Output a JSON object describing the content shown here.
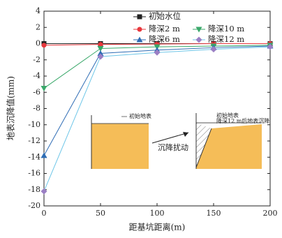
{
  "chart_data": {
    "type": "line",
    "xlabel": "距基坑距离(m)",
    "ylabel": "地表沉降值(mm)",
    "x": [
      0,
      50,
      100,
      150,
      200
    ],
    "xlim": [
      0,
      200
    ],
    "xticks": [
      0,
      50,
      100,
      150,
      200
    ],
    "ylim": [
      -20,
      4
    ],
    "yticks": [
      -20,
      -18,
      -16,
      -14,
      -12,
      -10,
      -8,
      -6,
      -4,
      -2,
      0,
      2,
      4
    ],
    "series": [
      {
        "name": "初始水位",
        "color": "#222222",
        "line_color": "#222222",
        "marker": "square",
        "values": [
          0,
          0,
          0,
          0,
          0
        ]
      },
      {
        "name": "降深2 m",
        "color": "#e8383d",
        "line_color": "#e8383d",
        "marker": "circle",
        "values": [
          -0.2,
          -0.1,
          -0.05,
          0,
          0
        ]
      },
      {
        "name": "降深10 m",
        "color": "#3aa86a",
        "line_color": "#3aa86a",
        "marker": "down",
        "values": [
          -5.5,
          -0.6,
          -0.4,
          -0.3,
          -0.2
        ]
      },
      {
        "name": "降深6 m",
        "color": "#2f6db5",
        "line_color": "#2f6db5",
        "marker": "up",
        "values": [
          -13.8,
          -1.2,
          -0.8,
          -0.5,
          -0.3
        ]
      },
      {
        "name": "降深12 m",
        "color": "#9b7fc4",
        "line_color": "#6ec6e8",
        "marker": "diamond",
        "values": [
          -18.2,
          -1.6,
          -1.1,
          -0.7,
          -0.4
        ]
      }
    ],
    "annotations": {
      "left_surface": "初始地表",
      "arrow": "沉降扰动",
      "right_surface": "初始地表",
      "right_settle": "降深12 m后地表沉降"
    }
  }
}
